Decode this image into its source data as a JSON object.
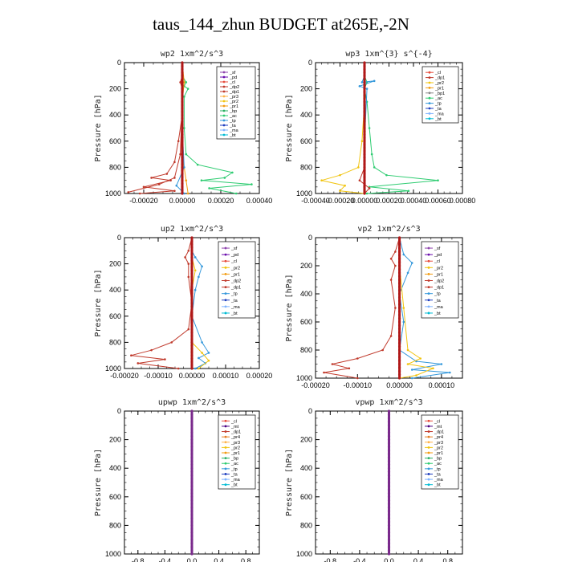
{
  "figure_title": "taus_144_zhun  BUDGET at265E,-2N",
  "colors": {
    "_sf": "#8e44ad",
    "_pd": "#6a0dad",
    "_cl": "#e74c3c",
    "_mt": "#4b0082",
    "_dp1": "#c0392b",
    "_dp2": "#c0392b",
    "_dp4": "#d35400",
    "_pr1": "#f39c12",
    "_pr2": "#f1c40f",
    "_pr3": "#ffb347",
    "_pr4": "#e67e22",
    "_bp": "#27ae60",
    "_ac": "#2ecc71",
    "_tp": "#3498db",
    "_ta": "#1f3fbf",
    "_ma": "#7fb3ff",
    "_bt": "#00bcd4"
  },
  "chart_data": [
    {
      "type": "line",
      "title": "wp2  1xm^2/s^3",
      "ylabel": "Pressure [hPa]",
      "xlim": [
        -0.0003,
        0.0004
      ],
      "ylim": [
        1000,
        0
      ],
      "xticks": [
        "-0.00020",
        "0.00000",
        "0.00020",
        "0.00040"
      ],
      "xtick_values": [
        -0.0002,
        0,
        0.0002,
        0.0004
      ],
      "yticks": [
        "0",
        "200",
        "400",
        "600",
        "800",
        "1000"
      ],
      "ytick_values": [
        0,
        200,
        400,
        600,
        800,
        1000
      ],
      "legend": [
        "_sf",
        "_pd",
        "_cl",
        "_dp2",
        "_dp1",
        "_pr3",
        "_pr2",
        "_pr1",
        "_bp",
        "_ac",
        "_tp",
        "_ta",
        "_ma",
        "_bt"
      ],
      "legend_position": "top-right",
      "series": [
        {
          "key": "_dp1",
          "points": [
            [
              0,
              0
            ],
            [
              0,
              100
            ],
            [
              -1e-05,
              150
            ],
            [
              0,
              200
            ],
            [
              0,
              400
            ],
            [
              -2e-05,
              600
            ],
            [
              -4e-05,
              760
            ],
            [
              -8e-05,
              850
            ],
            [
              -0.00016,
              880
            ],
            [
              -6e-05,
              900
            ],
            [
              -0.0002,
              950
            ],
            [
              -4e-05,
              980
            ],
            [
              -0.00022,
              1000
            ]
          ]
        },
        {
          "key": "_dp2",
          "points": [
            [
              0,
              0
            ],
            [
              0,
              300
            ],
            [
              -1e-05,
              700
            ],
            [
              -4e-05,
              880
            ],
            [
              -0.00012,
              930
            ],
            [
              -0.00028,
              990
            ]
          ]
        },
        {
          "key": "_ac",
          "points": [
            [
              0,
              0
            ],
            [
              0,
              100
            ],
            [
              2e-05,
              150
            ],
            [
              1e-05,
              180
            ],
            [
              3e-05,
              200
            ],
            [
              1e-05,
              260
            ],
            [
              1e-05,
              500
            ],
            [
              2e-05,
              700
            ],
            [
              8e-05,
              780
            ],
            [
              0.00026,
              840
            ],
            [
              0.00022,
              880
            ],
            [
              0.0001,
              900
            ],
            [
              0.00036,
              930
            ],
            [
              0.00014,
              960
            ],
            [
              0.00028,
              1000
            ]
          ]
        },
        {
          "key": "_pr1",
          "points": [
            [
              0,
              0
            ],
            [
              1e-05,
              150
            ],
            [
              0,
              300
            ],
            [
              0,
              700
            ],
            [
              2e-05,
              900
            ],
            [
              3e-05,
              1000
            ]
          ]
        },
        {
          "key": "_tp",
          "points": [
            [
              0,
              0
            ],
            [
              0,
              500
            ],
            [
              1e-05,
              800
            ],
            [
              -3e-05,
              940
            ],
            [
              1e-05,
              1000
            ]
          ]
        },
        {
          "key": "_pd",
          "points": [
            [
              0,
              0
            ],
            [
              0,
              200
            ],
            [
              0,
              600
            ],
            [
              0,
              1000
            ]
          ]
        }
      ]
    },
    {
      "type": "line",
      "title": "wp3  1xm^{3} s^{-4}",
      "ylabel": "Pressure [hPa]",
      "xlim": [
        -0.0004,
        0.0008
      ],
      "ylim": [
        1000,
        0
      ],
      "xticks": [
        "-0.00040",
        "-0.00020",
        "0.00000",
        "0.00020",
        "0.00040",
        "0.00060",
        "0.00080"
      ],
      "xtick_values": [
        -0.0004,
        -0.0002,
        0,
        0.0002,
        0.0004,
        0.0006,
        0.0008
      ],
      "yticks": [
        "0",
        "200",
        "400",
        "600",
        "800",
        "1000"
      ],
      "ytick_values": [
        0,
        200,
        400,
        600,
        800,
        1000
      ],
      "legend": [
        "_cl",
        "_dp1",
        "_pr2",
        "_pr1",
        "_bp1",
        "_ac",
        "_tp",
        "_ta",
        "_ma",
        "_bt"
      ],
      "legend_position": "top-right",
      "series": [
        {
          "key": "_ac",
          "points": [
            [
              0,
              0
            ],
            [
              0,
              100
            ],
            [
              2e-05,
              150
            ],
            [
              0,
              200
            ],
            [
              2e-05,
              300
            ],
            [
              4e-05,
              500
            ],
            [
              6e-05,
              700
            ],
            [
              8e-05,
              800
            ],
            [
              0.00018,
              860
            ],
            [
              0.0006,
              900
            ],
            [
              4e-05,
              950
            ],
            [
              0.00036,
              980
            ],
            [
              2e-05,
              1000
            ]
          ]
        },
        {
          "key": "_pr2",
          "points": [
            [
              0,
              0
            ],
            [
              0,
              300
            ],
            [
              -2e-05,
              600
            ],
            [
              -5e-05,
              800
            ],
            [
              -0.0002,
              860
            ],
            [
              -0.00035,
              900
            ],
            [
              -0.00016,
              940
            ],
            [
              -0.0002,
              980
            ],
            [
              0,
              1000
            ]
          ]
        },
        {
          "key": "_tp",
          "points": [
            [
              0,
              0
            ],
            [
              0,
              100
            ],
            [
              -2e-05,
              150
            ],
            [
              8e-05,
              140
            ],
            [
              -4e-05,
              180
            ],
            [
              2e-05,
              200
            ],
            [
              0,
              600
            ],
            [
              0,
              1000
            ]
          ]
        },
        {
          "key": "_dp1",
          "points": [
            [
              0,
              0
            ],
            [
              0,
              200
            ],
            [
              0,
              500
            ],
            [
              0,
              800
            ],
            [
              -4e-05,
              900
            ],
            [
              4e-05,
              960
            ],
            [
              0,
              1000
            ]
          ]
        },
        {
          "key": "_cl",
          "points": [
            [
              0,
              0
            ],
            [
              0,
              200
            ],
            [
              0,
              500
            ],
            [
              0,
              800
            ],
            [
              0,
              1000
            ]
          ]
        }
      ]
    },
    {
      "type": "line",
      "title": "up2  1xm^2/s^3",
      "ylabel": "Pressure [hPa]",
      "xlim": [
        -0.0002,
        0.0002
      ],
      "ylim": [
        1000,
        0
      ],
      "xticks": [
        "-0.00020",
        "-0.00010",
        "0.00000",
        "0.00010",
        "0.00020"
      ],
      "xtick_values": [
        -0.0002,
        -0.0001,
        0,
        0.0001,
        0.0002
      ],
      "yticks": [
        "0",
        "200",
        "400",
        "600",
        "800",
        "1000"
      ],
      "ytick_values": [
        0,
        200,
        400,
        600,
        800,
        1000
      ],
      "legend": [
        "_sf",
        "_pd",
        "_cl",
        "_pr2",
        "_pr1",
        "_dp2",
        "_dp1",
        "_tp",
        "_ta",
        "_ma",
        "_bt"
      ],
      "legend_position": "top-right",
      "series": [
        {
          "key": "_dp1",
          "points": [
            [
              0,
              0
            ],
            [
              -1e-05,
              100
            ],
            [
              -2e-05,
              150
            ],
            [
              -1e-05,
              200
            ],
            [
              -1e-05,
              300
            ],
            [
              0,
              500
            ],
            [
              -1e-05,
              700
            ],
            [
              -6e-05,
              800
            ],
            [
              -0.00012,
              860
            ],
            [
              -0.00018,
              900
            ],
            [
              -8e-05,
              930
            ],
            [
              -0.00016,
              960
            ],
            [
              -4e-05,
              1000
            ]
          ]
        },
        {
          "key": "_tp",
          "points": [
            [
              0,
              0
            ],
            [
              0,
              100
            ],
            [
              1e-05,
              150
            ],
            [
              3e-05,
              220
            ],
            [
              2e-05,
              300
            ],
            [
              1e-05,
              400
            ],
            [
              0,
              600
            ],
            [
              3e-05,
              800
            ],
            [
              5e-05,
              880
            ],
            [
              2e-05,
              920
            ],
            [
              4e-05,
              960
            ],
            [
              1e-05,
              1000
            ]
          ]
        },
        {
          "key": "_pr2",
          "points": [
            [
              0,
              0
            ],
            [
              0,
              150
            ],
            [
              1e-05,
              250
            ],
            [
              0,
              400
            ],
            [
              0,
              800
            ],
            [
              3e-05,
              880
            ],
            [
              5e-05,
              940
            ],
            [
              2e-05,
              1000
            ]
          ]
        },
        {
          "key": "_sf",
          "points": [
            [
              0,
              0
            ],
            [
              0,
              300
            ],
            [
              0,
              600
            ],
            [
              0,
              900
            ],
            [
              0,
              1000
            ]
          ]
        }
      ]
    },
    {
      "type": "line",
      "title": "vp2  1xm^2/s^3",
      "ylabel": "Pressure [hPa]",
      "xlim": [
        -0.0002,
        0.00015
      ],
      "ylim": [
        1000,
        0
      ],
      "xticks": [
        "-0.00020",
        "-0.00010",
        "0.00000",
        "0.00010"
      ],
      "xtick_values": [
        -0.0002,
        -0.0001,
        0,
        0.0001
      ],
      "yticks": [
        "0",
        "200",
        "400",
        "600",
        "800",
        "1000"
      ],
      "ytick_values": [
        0,
        200,
        400,
        600,
        800,
        1000
      ],
      "legend": [
        "_sf",
        "_pd",
        "_cl",
        "_pr2",
        "_pr1",
        "_dp2",
        "_dp1",
        "_tp",
        "_ta",
        "_ma",
        "_bt"
      ],
      "legend_position": "top-right",
      "series": [
        {
          "key": "_dp1",
          "points": [
            [
              0,
              0
            ],
            [
              -1e-05,
              100
            ],
            [
              -2e-05,
              150
            ],
            [
              -1e-05,
              200
            ],
            [
              -2e-05,
              300
            ],
            [
              -1e-05,
              500
            ],
            [
              -2e-05,
              700
            ],
            [
              -4e-05,
              800
            ],
            [
              -0.0001,
              860
            ],
            [
              -0.00016,
              900
            ],
            [
              -0.00012,
              930
            ],
            [
              -0.00018,
              960
            ],
            [
              -0.0001,
              1000
            ]
          ]
        },
        {
          "key": "_tp",
          "points": [
            [
              0,
              0
            ],
            [
              1e-05,
              120
            ],
            [
              3e-05,
              180
            ],
            [
              2e-05,
              250
            ],
            [
              0,
              400
            ],
            [
              1e-05,
              600
            ],
            [
              0,
              800
            ],
            [
              4e-05,
              880
            ],
            [
              0.0001,
              900
            ],
            [
              3e-05,
              940
            ],
            [
              0.00012,
              960
            ],
            [
              3e-05,
              1000
            ]
          ]
        },
        {
          "key": "_pr2",
          "points": [
            [
              0,
              0
            ],
            [
              0,
              200
            ],
            [
              1e-05,
              500
            ],
            [
              2e-05,
              800
            ],
            [
              5e-05,
              860
            ],
            [
              2e-05,
              900
            ],
            [
              8e-05,
              930
            ],
            [
              4e-05,
              980
            ],
            [
              0,
              1000
            ]
          ]
        },
        {
          "key": "_sf",
          "points": [
            [
              0,
              0
            ],
            [
              0,
              300
            ],
            [
              0,
              600
            ],
            [
              0,
              900
            ],
            [
              0,
              1000
            ]
          ]
        }
      ]
    },
    {
      "type": "line",
      "title": "upwp  1xm^2/s^3",
      "ylabel": "Pressure [hPa]",
      "xlim": [
        -1,
        1
      ],
      "ylim": [
        1000,
        0
      ],
      "xticks": [
        "-0.8",
        "-0.4",
        "0.0",
        "0.4",
        "0.8"
      ],
      "xtick_values": [
        -0.8,
        -0.4,
        0,
        0.4,
        0.8
      ],
      "yticks": [
        "0",
        "200",
        "400",
        "600",
        "800",
        "1000"
      ],
      "ytick_values": [
        0,
        200,
        400,
        600,
        800,
        1000
      ],
      "legend": [
        "_cl",
        "_mt",
        "_dp1",
        "_pr4",
        "_pr3",
        "_pr2",
        "_pr1",
        "_bp",
        "_ac",
        "_tp",
        "_ta",
        "_ma",
        "_bt"
      ],
      "legend_position": "top-right",
      "series": [
        {
          "key": "_mt",
          "points": [
            [
              0,
              0
            ],
            [
              0,
              1000
            ]
          ]
        }
      ]
    },
    {
      "type": "line",
      "title": "vpwp  1xm^2/s^3",
      "ylabel": "Pressure [hPa]",
      "xlim": [
        -1,
        1
      ],
      "ylim": [
        1000,
        0
      ],
      "xticks": [
        "-0.8",
        "-0.4",
        "0.0",
        "0.4",
        "0.8"
      ],
      "xtick_values": [
        -0.8,
        -0.4,
        0,
        0.4,
        0.8
      ],
      "yticks": [
        "0",
        "200",
        "400",
        "600",
        "800",
        "1000"
      ],
      "ytick_values": [
        0,
        200,
        400,
        600,
        800,
        1000
      ],
      "legend": [
        "_cl",
        "_mt",
        "_dp1",
        "_pr4",
        "_pr3",
        "_pr2",
        "_pr1",
        "_bp",
        "_ac",
        "_tp",
        "_ta",
        "_ma",
        "_bt"
      ],
      "legend_position": "top-right",
      "series": [
        {
          "key": "_mt",
          "points": [
            [
              0,
              0
            ],
            [
              0,
              1000
            ]
          ]
        }
      ]
    }
  ]
}
